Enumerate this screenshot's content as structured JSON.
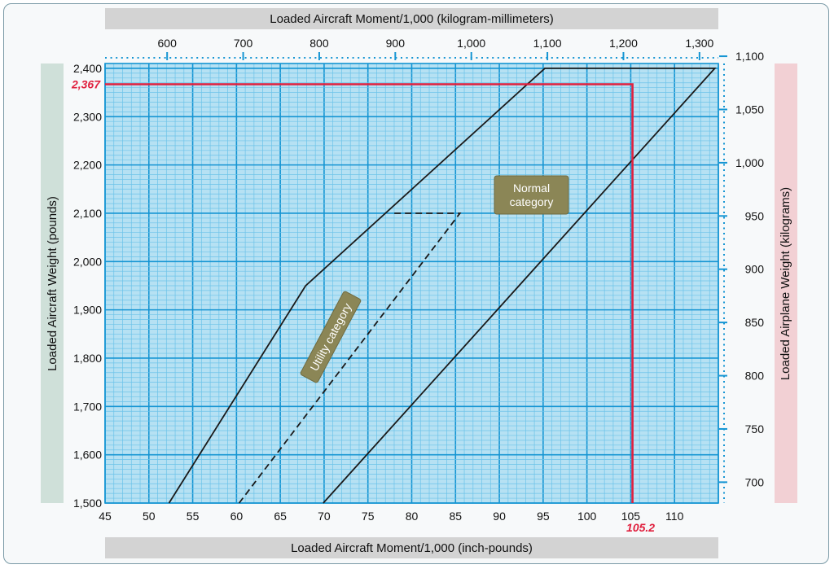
{
  "chart_data": {
    "type": "line",
    "x_axis_bottom": {
      "label": "Loaded Aircraft Moment/1,000 (inch-pounds)",
      "range": [
        45,
        115
      ],
      "ticks": [
        "45",
        "50",
        "55",
        "60",
        "65",
        "70",
        "75",
        "80",
        "85",
        "90",
        "95",
        "100",
        "105",
        "110"
      ]
    },
    "x_axis_top": {
      "label": "Loaded Aircraft Moment/1,000 (kilogram-millimeters)",
      "ticks": [
        "600",
        "700",
        "800",
        "900",
        "1,000",
        "1,100",
        "1,200",
        "1,300"
      ]
    },
    "y_axis_left": {
      "label": "Loaded  Aircraft Weight (pounds)",
      "range": [
        1500,
        2410
      ],
      "ticks": [
        "1,500",
        "1,600",
        "1,700",
        "1,800",
        "1,900",
        "2,000",
        "2,100",
        "2,200",
        "2,300",
        "2,400"
      ]
    },
    "y_axis_right": {
      "label": "Loaded Airplane Weight (kilograms)",
      "ticks": [
        "700",
        "750",
        "800",
        "850",
        "900",
        "950",
        "1,000",
        "1,050",
        "1,100"
      ]
    },
    "grid": true,
    "series": [
      {
        "name": "Normal category",
        "style": "solid",
        "points": [
          [
            52.3,
            1500
          ],
          [
            67.9,
            1950
          ],
          [
            95.2,
            2400
          ],
          [
            114.6,
            2400
          ],
          [
            69.9,
            1500
          ]
        ]
      },
      {
        "name": "Utility category",
        "style": "dashed",
        "points": [
          [
            60.3,
            1500
          ],
          [
            85.5,
            2100
          ],
          [
            77.8,
            2100
          ]
        ]
      },
      {
        "name": "",
        "style": "red",
        "points": [
          [
            45,
            2367
          ],
          [
            105.2,
            2367
          ],
          [
            105.2,
            1500
          ]
        ]
      }
    ],
    "annotations": {
      "normal_label": "Normal\ncategory",
      "utility_label": "Utility category",
      "weight_marker": "2,367",
      "moment_marker": "105.2"
    },
    "colors": {
      "plot_bg": "#b6e1f3",
      "minor_grid": "#6cc3e9",
      "major_grid": "#1595d3",
      "envelope": "#1a1a1a",
      "marker": "#e0203e",
      "category_box": "#8b8656"
    }
  }
}
